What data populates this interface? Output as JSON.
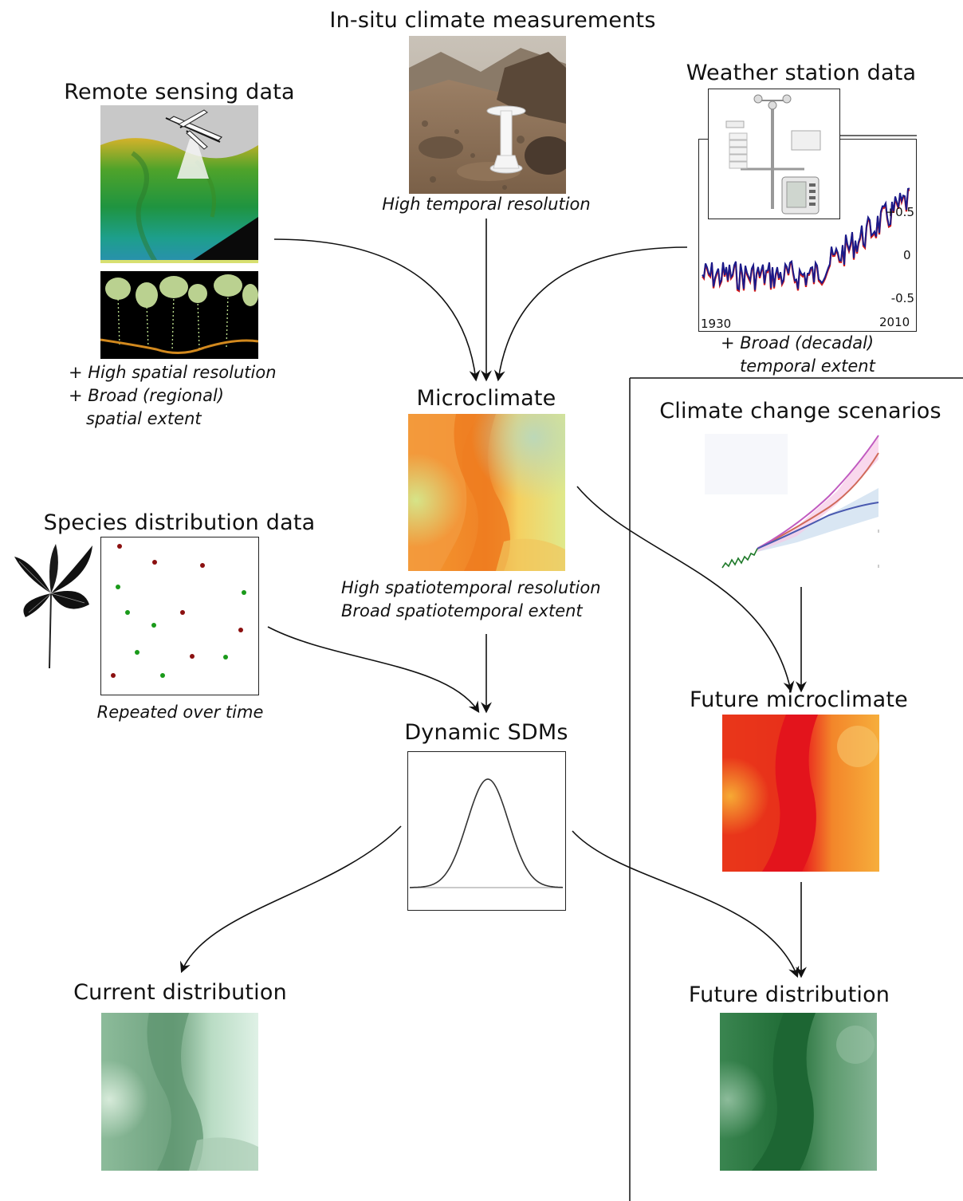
{
  "titles": {
    "insitu": "In-situ climate measurements",
    "remote": "Remote sensing data",
    "weather": "Weather station data",
    "microclimate": "Microclimate",
    "climate_change": "Climate change scenarios",
    "species": "Species distribution data",
    "dynamic_sdm": "Dynamic SDMs",
    "future_micro": "Future microclimate",
    "current_dist": "Current distribution",
    "future_dist": "Future distribution"
  },
  "captions": {
    "insitu": "High temporal resolution",
    "remote_1": "+ High spatial resolution",
    "remote_2": "+ Broad (regional)",
    "remote_3": "spatial extent",
    "weather_1": "+ Broad (decadal)",
    "weather_2": "temporal extent",
    "micro_1": "High spatiotemporal resolution",
    "micro_2": "Broad spatiotemporal extent",
    "species": "Repeated over time"
  },
  "weather_chart": {
    "x_start": "1930",
    "x_end": "2010",
    "y_ticks": [
      "+0.5",
      "0",
      "-0.5"
    ]
  },
  "species_points": {
    "present_color": "#1a9a1a",
    "absent_color": "#8b1010"
  },
  "colors": {
    "micro_warm": "#f07a20",
    "micro_cool": "#e6ec8a",
    "future_hot": "#e8161c",
    "dist_dark": "#1f6b35",
    "dist_light": "#d8efe0"
  }
}
